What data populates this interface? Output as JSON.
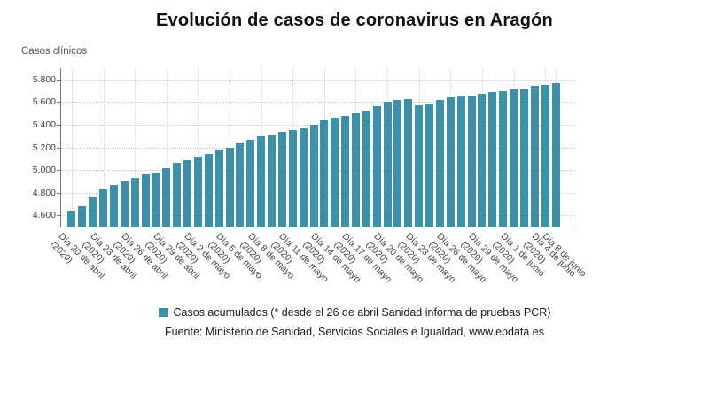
{
  "title": "Evolución de casos de coronavirus en Aragón",
  "y_axis_title": "Casos clínicos",
  "legend": {
    "label": "Casos acumulados (* desde el 26 de abril Sanidad informa de pruebas PCR)"
  },
  "source": "Fuente: Ministerio de Sanidad, Servicios Sociales e Igualdad, www.epdata.es",
  "colors": {
    "bar": "#3D90A9",
    "grid": "#c9c9c9",
    "axis": "#333333",
    "tick_text": "#444444",
    "title_text": "#101010"
  },
  "chart_data": {
    "type": "bar",
    "title": "Evolución de casos de coronavirus en Aragón",
    "ylabel": "Casos clínicos",
    "xlabel": "",
    "ylim": [
      4500,
      5900
    ],
    "grid": true,
    "legend_position": "bottom",
    "y_ticks": [
      {
        "value": 4600,
        "label": "4.600"
      },
      {
        "value": 4800,
        "label": "4.800"
      },
      {
        "value": 5000,
        "label": "5.000"
      },
      {
        "value": 5200,
        "label": "5.200"
      },
      {
        "value": 5400,
        "label": "5.400"
      },
      {
        "value": 5600,
        "label": "5.600"
      },
      {
        "value": 5800,
        "label": "5.800"
      }
    ],
    "x": [
      "20 de abril",
      "21 de abril",
      "22 de abril",
      "23 de abril",
      "24 de abril",
      "25 de abril",
      "26 de abril",
      "27 de abril",
      "28 de abril",
      "29 de abril",
      "30 de abril",
      "1 de mayo",
      "2 de mayo",
      "3 de mayo",
      "4 de mayo",
      "5 de mayo",
      "6 de mayo",
      "7 de mayo",
      "8 de mayo",
      "9 de mayo",
      "10 de mayo",
      "11 de mayo",
      "12 de mayo",
      "13 de mayo",
      "14 de mayo",
      "15 de mayo",
      "16 de mayo",
      "17 de mayo",
      "18 de mayo",
      "19 de mayo",
      "20 de mayo",
      "21 de mayo",
      "22 de mayo",
      "23 de mayo",
      "24 de mayo",
      "25 de mayo",
      "26 de mayo",
      "27 de mayo",
      "28 de mayo",
      "29 de mayo",
      "30 de mayo",
      "31 de mayo",
      "1 de junio",
      "2 de junio",
      "3 de junio",
      "4 de junio",
      "8 de junio"
    ],
    "values": [
      4640,
      4680,
      4760,
      4830,
      4870,
      4900,
      4930,
      4960,
      4980,
      5015,
      5065,
      5090,
      5115,
      5145,
      5180,
      5200,
      5240,
      5265,
      5300,
      5315,
      5335,
      5350,
      5365,
      5400,
      5435,
      5460,
      5480,
      5500,
      5525,
      5560,
      5600,
      5615,
      5625,
      5575,
      5580,
      5620,
      5640,
      5650,
      5660,
      5670,
      5690,
      5700,
      5710,
      5720,
      5740,
      5755,
      5765
    ],
    "series_name": "Casos acumulados",
    "x_tick_labels": [
      {
        "i": 0,
        "line1": "Día 20 de abril",
        "line2": "(2020)"
      },
      {
        "i": 3,
        "line1": "Día 23 de abril",
        "line2": "(2020)"
      },
      {
        "i": 6,
        "line1": "Día 26 de abril",
        "line2": "(2020)"
      },
      {
        "i": 9,
        "line1": "Día 29 de abril",
        "line2": "(2020)"
      },
      {
        "i": 12,
        "line1": "Día 2 de mayo",
        "line2": "(2020)"
      },
      {
        "i": 15,
        "line1": "Día 5 de mayo",
        "line2": "(2020)"
      },
      {
        "i": 18,
        "line1": "Día 8 de mayo",
        "line2": "(2020)"
      },
      {
        "i": 21,
        "line1": "Día 11 de mayo",
        "line2": "(2020)"
      },
      {
        "i": 24,
        "line1": "Día 14 de mayo",
        "line2": "(2020)"
      },
      {
        "i": 27,
        "line1": "Día 17 de mayo",
        "line2": "(2020)"
      },
      {
        "i": 30,
        "line1": "Día 20 de mayo",
        "line2": "(2020)"
      },
      {
        "i": 33,
        "line1": "Día 23 de mayo",
        "line2": "(2020)"
      },
      {
        "i": 36,
        "line1": "Día 26 de mayo",
        "line2": "(2020)"
      },
      {
        "i": 39,
        "line1": "Día 29 de mayo",
        "line2": "(2020)"
      },
      {
        "i": 42,
        "line1": "Día 1 de junio",
        "line2": "(2020)"
      },
      {
        "i": 45,
        "line1": "Día 4 de junio",
        "line2": "(2020)"
      },
      {
        "i": 46,
        "line1": "Día 8 de junio",
        "line2": ""
      }
    ]
  }
}
